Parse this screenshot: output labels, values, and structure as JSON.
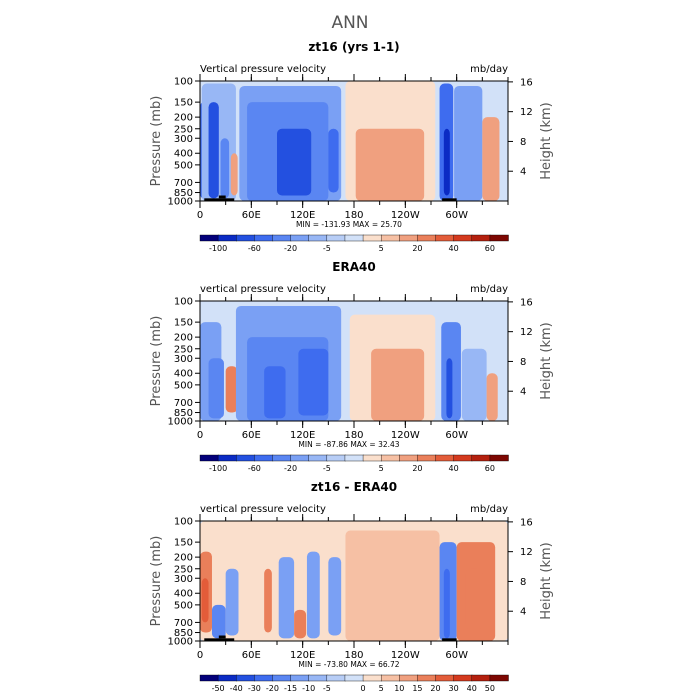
{
  "figure": {
    "title": "ANN"
  },
  "chart_data": [
    {
      "type": "heatmap",
      "title": "zt16 (yrs 1-1)",
      "left_label": "Vertical pressure velocity",
      "right_label": "mb/day",
      "ylabel": "Pressure (mb)",
      "y2label": "Height (km)",
      "xticks": [
        "0",
        "60E",
        "120E",
        "180",
        "120W",
        "60W"
      ],
      "xtick_lon": [
        0,
        60,
        120,
        180,
        240,
        300
      ],
      "xlim": [
        0,
        360
      ],
      "yticks": [
        "100",
        "150",
        "200",
        "250",
        "300",
        "400",
        "500",
        "700",
        "850",
        "1000"
      ],
      "ytick_p": [
        100,
        150,
        200,
        250,
        300,
        400,
        500,
        700,
        850,
        1000
      ],
      "ylim": [
        100,
        1000
      ],
      "y2ticks": [
        "4",
        "8",
        "12",
        "16"
      ],
      "y2_km": [
        4,
        8,
        12,
        16
      ],
      "stats": "MIN = -131.93   MAX =  25.70",
      "colorbar_labels": [
        "-100",
        "-60",
        "-20",
        "-5",
        "5",
        "20",
        "40",
        "60"
      ],
      "colorbar_colors": [
        "#03007a",
        "#0b2bc4",
        "#2350e0",
        "#3e6cef",
        "#5a86f2",
        "#7aa0f4",
        "#98b7f5",
        "#b7cdf6",
        "#d2e1f8",
        "#fadfcc",
        "#f6c0a4",
        "#f0a07f",
        "#ea7f5a",
        "#e35c39",
        "#d43a1e",
        "#b4200e",
        "#7d0702"
      ],
      "regions": [
        {
          "lon": [
            0,
            8
          ],
          "p": [
            150,
            950
          ],
          "value": -40
        },
        {
          "lon": [
            2,
            42
          ],
          "p": [
            105,
            1000
          ],
          "value": -8
        },
        {
          "lon": [
            10,
            22
          ],
          "p": [
            150,
            950
          ],
          "value": -60
        },
        {
          "lon": [
            24,
            34
          ],
          "p": [
            300,
            950
          ],
          "value": -20
        },
        {
          "lon": [
            36,
            44
          ],
          "p": [
            400,
            900
          ],
          "value": 15
        },
        {
          "lon": [
            46,
            165
          ],
          "p": [
            110,
            1000
          ],
          "value": -10
        },
        {
          "lon": [
            55,
            150
          ],
          "p": [
            150,
            1000
          ],
          "value": -30
        },
        {
          "lon": [
            90,
            130
          ],
          "p": [
            250,
            900
          ],
          "value": -60
        },
        {
          "lon": [
            150,
            162
          ],
          "p": [
            250,
            850
          ],
          "value": -45
        },
        {
          "lon": [
            170,
            275
          ],
          "p": [
            100,
            1000
          ],
          "value": 4
        },
        {
          "lon": [
            182,
            262
          ],
          "p": [
            250,
            1000
          ],
          "value": 15
        },
        {
          "lon": [
            280,
            296
          ],
          "p": [
            105,
            1000
          ],
          "value": -40
        },
        {
          "lon": [
            285,
            292
          ],
          "p": [
            250,
            900
          ],
          "value": -100
        },
        {
          "lon": [
            297,
            330
          ],
          "p": [
            110,
            1000
          ],
          "value": -15
        },
        {
          "lon": [
            330,
            350
          ],
          "p": [
            200,
            1000
          ],
          "value": 15
        }
      ],
      "topography": [
        {
          "lon": [
            5,
            40
          ],
          "p": [
            950,
            1000
          ]
        },
        {
          "lon": [
            22,
            30
          ],
          "p": [
            900,
            950
          ]
        },
        {
          "lon": [
            283,
            300
          ],
          "p": [
            950,
            1000
          ]
        }
      ]
    },
    {
      "type": "heatmap",
      "title": "ERA40",
      "left_label": "vertical pressure velocity",
      "right_label": "mb/day",
      "ylabel": "Pressure (mb)",
      "y2label": "Height (km)",
      "xticks": [
        "0",
        "60E",
        "120E",
        "180",
        "120W",
        "60W"
      ],
      "xtick_lon": [
        0,
        60,
        120,
        180,
        240,
        300
      ],
      "xlim": [
        0,
        360
      ],
      "yticks": [
        "100",
        "150",
        "200",
        "250",
        "300",
        "400",
        "500",
        "700",
        "850",
        "1000"
      ],
      "ytick_p": [
        100,
        150,
        200,
        250,
        300,
        400,
        500,
        700,
        850,
        1000
      ],
      "ylim": [
        100,
        1000
      ],
      "y2ticks": [
        "4",
        "8",
        "12",
        "16"
      ],
      "y2_km": [
        4,
        8,
        12,
        16
      ],
      "stats": "MIN = -87.86   MAX =  32.43",
      "colorbar_labels": [
        "-100",
        "-60",
        "-20",
        "-5",
        "5",
        "20",
        "40",
        "60"
      ],
      "colorbar_colors": [
        "#03007a",
        "#0b2bc4",
        "#2350e0",
        "#3e6cef",
        "#5a86f2",
        "#7aa0f4",
        "#98b7f5",
        "#b7cdf6",
        "#d2e1f8",
        "#fadfcc",
        "#f6c0a4",
        "#f0a07f",
        "#ea7f5a",
        "#e35c39",
        "#d43a1e",
        "#b4200e",
        "#7d0702"
      ],
      "regions": [
        {
          "lon": [
            0,
            25
          ],
          "p": [
            150,
            1000
          ],
          "value": -10
        },
        {
          "lon": [
            10,
            28
          ],
          "p": [
            300,
            950
          ],
          "value": -30
        },
        {
          "lon": [
            30,
            44
          ],
          "p": [
            350,
            850
          ],
          "value": 20
        },
        {
          "lon": [
            42,
            165
          ],
          "p": [
            110,
            1000
          ],
          "value": -10
        },
        {
          "lon": [
            55,
            150
          ],
          "p": [
            200,
            1000
          ],
          "value": -25
        },
        {
          "lon": [
            75,
            100
          ],
          "p": [
            350,
            950
          ],
          "value": -45
        },
        {
          "lon": [
            115,
            150
          ],
          "p": [
            250,
            900
          ],
          "value": -45
        },
        {
          "lon": [
            175,
            275
          ],
          "p": [
            130,
            1000
          ],
          "value": 4
        },
        {
          "lon": [
            200,
            262
          ],
          "p": [
            250,
            1000
          ],
          "value": 12
        },
        {
          "lon": [
            282,
            305
          ],
          "p": [
            150,
            1000
          ],
          "value": -20
        },
        {
          "lon": [
            288,
            295
          ],
          "p": [
            300,
            950
          ],
          "value": -60
        },
        {
          "lon": [
            306,
            335
          ],
          "p": [
            250,
            1000
          ],
          "value": -8
        },
        {
          "lon": [
            335,
            348
          ],
          "p": [
            400,
            1000
          ],
          "value": 15
        }
      ],
      "topography": []
    },
    {
      "type": "heatmap",
      "title": "zt16 - ERA40",
      "left_label": "vertical pressure velocity",
      "right_label": "mb/day",
      "ylabel": "Pressure (mb)",
      "y2label": "Height (km)",
      "xticks": [
        "0",
        "60E",
        "120E",
        "180",
        "120W",
        "60W"
      ],
      "xtick_lon": [
        0,
        60,
        120,
        180,
        240,
        300
      ],
      "xlim": [
        0,
        360
      ],
      "yticks": [
        "100",
        "150",
        "200",
        "250",
        "300",
        "400",
        "500",
        "700",
        "850",
        "1000"
      ],
      "ytick_p": [
        100,
        150,
        200,
        250,
        300,
        400,
        500,
        700,
        850,
        1000
      ],
      "ylim": [
        100,
        1000
      ],
      "y2ticks": [
        "4",
        "8",
        "12",
        "16"
      ],
      "y2_km": [
        4,
        8,
        12,
        16
      ],
      "stats": "MIN = -73.80   MAX =  66.72",
      "colorbar_labels": [
        "-50",
        "-40",
        "-30",
        "-20",
        "-15",
        "-10",
        "-5",
        "0",
        "5",
        "10",
        "15",
        "20",
        "30",
        "40",
        "50"
      ],
      "colorbar_colors": [
        "#03007a",
        "#0b2bc4",
        "#2350e0",
        "#3e6cef",
        "#5a86f2",
        "#7aa0f4",
        "#98b7f5",
        "#b7cdf6",
        "#d2e1f8",
        "#fadfcc",
        "#f6c0a4",
        "#f0a07f",
        "#ea7f5a",
        "#e35c39",
        "#d43a1e",
        "#b4200e",
        "#7d0702"
      ],
      "regions": [
        {
          "lon": [
            0,
            360
          ],
          "p": [
            100,
            1000
          ],
          "value": 2
        },
        {
          "lon": [
            0,
            14
          ],
          "p": [
            180,
            850
          ],
          "value": 30
        },
        {
          "lon": [
            2,
            10
          ],
          "p": [
            300,
            700
          ],
          "value": 50
        },
        {
          "lon": [
            14,
            30
          ],
          "p": [
            500,
            950
          ],
          "value": -20
        },
        {
          "lon": [
            30,
            45
          ],
          "p": [
            250,
            900
          ],
          "value": -10
        },
        {
          "lon": [
            75,
            84
          ],
          "p": [
            250,
            850
          ],
          "value": 25
        },
        {
          "lon": [
            92,
            110
          ],
          "p": [
            200,
            950
          ],
          "value": -15
        },
        {
          "lon": [
            110,
            124
          ],
          "p": [
            550,
            950
          ],
          "value": 30
        },
        {
          "lon": [
            125,
            140
          ],
          "p": [
            180,
            950
          ],
          "value": -15
        },
        {
          "lon": [
            150,
            165
          ],
          "p": [
            200,
            900
          ],
          "value": -10
        },
        {
          "lon": [
            170,
            280
          ],
          "p": [
            120,
            1000
          ],
          "value": 6
        },
        {
          "lon": [
            280,
            300
          ],
          "p": [
            150,
            1000
          ],
          "value": -30
        },
        {
          "lon": [
            285,
            292
          ],
          "p": [
            250,
            950
          ],
          "value": -50
        },
        {
          "lon": [
            300,
            345
          ],
          "p": [
            150,
            1000
          ],
          "value": 20
        },
        {
          "lon": [
            310,
            330
          ],
          "p": [
            250,
            800
          ],
          "value": 35
        }
      ],
      "topography": [
        {
          "lon": [
            5,
            40
          ],
          "p": [
            950,
            1000
          ]
        },
        {
          "lon": [
            22,
            30
          ],
          "p": [
            900,
            950
          ]
        },
        {
          "lon": [
            283,
            300
          ],
          "p": [
            950,
            1000
          ]
        }
      ]
    }
  ]
}
